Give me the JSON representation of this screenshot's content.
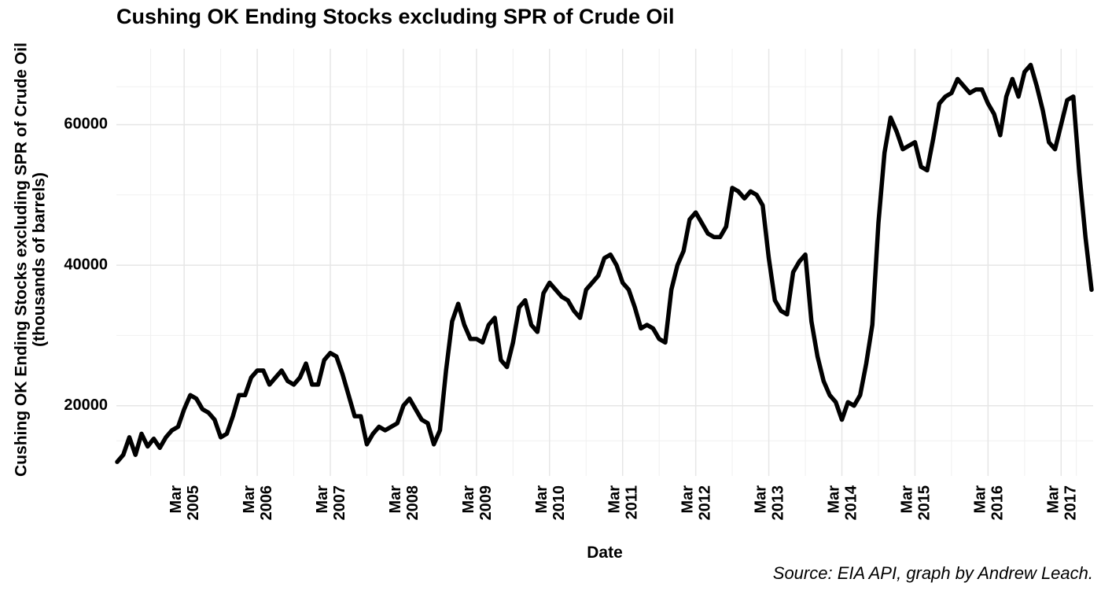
{
  "chart_data": {
    "type": "line",
    "title": "Cushing OK Ending Stocks excluding SPR of Crude Oil",
    "xlabel": "Date",
    "ylabel": [
      "Cushing OK Ending Stocks excluding SPR of Crude Oil",
      "(thousands of barrels)"
    ],
    "caption": "Source: EIA API, graph by Andrew Leach.",
    "grid": true,
    "xlim": [
      "2004-04",
      "2017-08"
    ],
    "xticks": [
      {
        "value": "2005-03",
        "label": "Mar 2005"
      },
      {
        "value": "2006-03",
        "label": "Mar 2006"
      },
      {
        "value": "2007-03",
        "label": "Mar 2007"
      },
      {
        "value": "2008-03",
        "label": "Mar 2008"
      },
      {
        "value": "2009-03",
        "label": "Mar 2009"
      },
      {
        "value": "2010-03",
        "label": "Mar 2010"
      },
      {
        "value": "2011-03",
        "label": "Mar 2011"
      },
      {
        "value": "2012-03",
        "label": "Mar 2012"
      },
      {
        "value": "2013-03",
        "label": "Mar 2013"
      },
      {
        "value": "2014-03",
        "label": "Mar 2014"
      },
      {
        "value": "2015-03",
        "label": "Mar 2015"
      },
      {
        "value": "2016-03",
        "label": "Mar 2016"
      },
      {
        "value": "2017-03",
        "label": "Mar 2017"
      }
    ],
    "ylim": [
      10000,
      70800
    ],
    "yticks": [
      20000,
      40000,
      60000
    ],
    "x": [
      "2004-04",
      "2004-05",
      "2004-06",
      "2004-07",
      "2004-08",
      "2004-09",
      "2004-10",
      "2004-11",
      "2004-12",
      "2005-01",
      "2005-02",
      "2005-03",
      "2005-04",
      "2005-05",
      "2005-06",
      "2005-07",
      "2005-08",
      "2005-09",
      "2005-10",
      "2005-11",
      "2005-12",
      "2006-01",
      "2006-02",
      "2006-03",
      "2006-04",
      "2006-05",
      "2006-06",
      "2006-07",
      "2006-08",
      "2006-09",
      "2006-10",
      "2006-11",
      "2006-12",
      "2007-01",
      "2007-02",
      "2007-03",
      "2007-04",
      "2007-05",
      "2007-06",
      "2007-07",
      "2007-08",
      "2007-09",
      "2007-10",
      "2007-11",
      "2007-12",
      "2008-01",
      "2008-02",
      "2008-03",
      "2008-04",
      "2008-05",
      "2008-06",
      "2008-07",
      "2008-08",
      "2008-09",
      "2008-10",
      "2008-11",
      "2008-12",
      "2009-01",
      "2009-02",
      "2009-03",
      "2009-04",
      "2009-05",
      "2009-06",
      "2009-07",
      "2009-08",
      "2009-09",
      "2009-10",
      "2009-11",
      "2009-12",
      "2010-01",
      "2010-02",
      "2010-03",
      "2010-04",
      "2010-05",
      "2010-06",
      "2010-07",
      "2010-08",
      "2010-09",
      "2010-10",
      "2010-11",
      "2010-12",
      "2011-01",
      "2011-02",
      "2011-03",
      "2011-04",
      "2011-05",
      "2011-06",
      "2011-07",
      "2011-08",
      "2011-09",
      "2011-10",
      "2011-11",
      "2011-12",
      "2012-01",
      "2012-02",
      "2012-03",
      "2012-04",
      "2012-05",
      "2012-06",
      "2012-07",
      "2012-08",
      "2012-09",
      "2012-10",
      "2012-11",
      "2012-12",
      "2013-01",
      "2013-02",
      "2013-03",
      "2013-04",
      "2013-05",
      "2013-06",
      "2013-07",
      "2013-08",
      "2013-09",
      "2013-10",
      "2013-11",
      "2013-12",
      "2014-01",
      "2014-02",
      "2014-03",
      "2014-04",
      "2014-05",
      "2014-06",
      "2014-07",
      "2014-08",
      "2014-09",
      "2014-10",
      "2014-11",
      "2014-12",
      "2015-01",
      "2015-02",
      "2015-03",
      "2015-04",
      "2015-05",
      "2015-06",
      "2015-07",
      "2015-08",
      "2015-09",
      "2015-10",
      "2015-11",
      "2015-12",
      "2016-01",
      "2016-02",
      "2016-03",
      "2016-04",
      "2016-05",
      "2016-06",
      "2016-07",
      "2016-08",
      "2016-09",
      "2016-10",
      "2016-11",
      "2016-12",
      "2017-01",
      "2017-02",
      "2017-03",
      "2017-04",
      "2017-05",
      "2017-06",
      "2017-07",
      "2017-08"
    ],
    "series": [
      {
        "color": "#000000",
        "values": [
          12000,
          13000,
          15500,
          13000,
          16000,
          14200,
          15300,
          14000,
          15500,
          16500,
          17000,
          19500,
          21500,
          21000,
          19500,
          19000,
          18000,
          15500,
          16000,
          18500,
          21500,
          21500,
          24000,
          25000,
          25000,
          23000,
          24000,
          25000,
          23500,
          23000,
          24000,
          26000,
          23000,
          23000,
          26500,
          27500,
          27000,
          24500,
          21500,
          18500,
          18500,
          14500,
          16000,
          17000,
          16500,
          17000,
          17500,
          20000,
          21000,
          19500,
          18000,
          17500,
          14500,
          16500,
          25000,
          32000,
          34500,
          31500,
          29500,
          29500,
          29000,
          31500,
          32500,
          26500,
          25500,
          29000,
          34000,
          35000,
          31500,
          30500,
          36000,
          37500,
          36500,
          35500,
          35000,
          33500,
          32500,
          36500,
          37500,
          38500,
          41000,
          41500,
          40000,
          37500,
          36500,
          34000,
          31000,
          31500,
          31000,
          29500,
          29000,
          36500,
          40000,
          42000,
          46500,
          47500,
          46000,
          44500,
          44000,
          44000,
          45500,
          51000,
          50500,
          49500,
          50500,
          50000,
          48500,
          41000,
          35000,
          33500,
          33000,
          39000,
          40500,
          41500,
          32000,
          27000,
          23500,
          21500,
          20500,
          18000,
          20500,
          20000,
          21500,
          26000,
          31500,
          46000,
          56000,
          61000,
          59000,
          56500,
          57000,
          57500,
          54000,
          53500,
          58000,
          63000,
          64000,
          64500,
          66500,
          65500,
          64500,
          65000,
          65000,
          63000,
          61500,
          58500,
          64000,
          66500,
          64000,
          67500,
          68500,
          65500,
          62000,
          57500,
          56500,
          60000,
          63500,
          64000,
          53000,
          44000,
          36500
        ]
      }
    ]
  }
}
